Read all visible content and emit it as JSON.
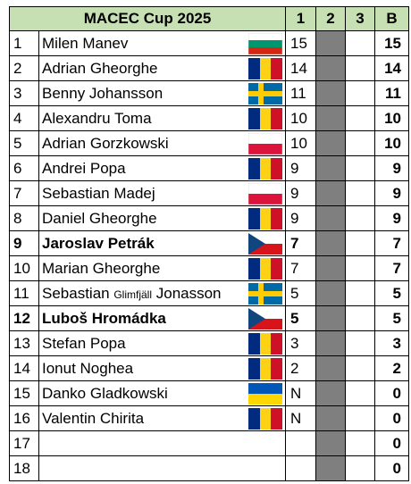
{
  "title": "MACEC Cup 2025",
  "headers": {
    "round1": "1",
    "round2": "2",
    "round3": "3",
    "best": "B"
  },
  "colors": {
    "header_bg": "#c6e0b4",
    "round2_bg": "#7f7f7f"
  },
  "rows": [
    {
      "rank": "1",
      "name_a": "Milen Manev",
      "name_small": "",
      "name_b": "",
      "flag": "bulgaria-flag-icon",
      "r1": "15",
      "b": "15",
      "bold": false
    },
    {
      "rank": "2",
      "name_a": "Adrian Gheorghe",
      "name_small": "",
      "name_b": "",
      "flag": "romania-flag-icon",
      "r1": "14",
      "b": "14",
      "bold": false
    },
    {
      "rank": "3",
      "name_a": "Benny Johansson",
      "name_small": "",
      "name_b": "",
      "flag": "sweden-flag-icon",
      "r1": "11",
      "b": "11",
      "bold": false
    },
    {
      "rank": "4",
      "name_a": "Alexandru Toma",
      "name_small": "",
      "name_b": "",
      "flag": "romania-flag-icon",
      "r1": "10",
      "b": "10",
      "bold": false
    },
    {
      "rank": "5",
      "name_a": "Adrian Gorzkowski",
      "name_small": "",
      "name_b": "",
      "flag": "poland-flag-icon",
      "r1": "10",
      "b": "10",
      "bold": false
    },
    {
      "rank": "6",
      "name_a": "Andrei Popa",
      "name_small": "",
      "name_b": "",
      "flag": "romania-flag-icon",
      "r1": "9",
      "b": "9",
      "bold": false
    },
    {
      "rank": "7",
      "name_a": "Sebastian Madej",
      "name_small": "",
      "name_b": "",
      "flag": "poland-flag-icon",
      "r1": "9",
      "b": "9",
      "bold": false
    },
    {
      "rank": "8",
      "name_a": "Daniel Gheorghe",
      "name_small": "",
      "name_b": "",
      "flag": "romania-flag-icon",
      "r1": "9",
      "b": "9",
      "bold": false
    },
    {
      "rank": "9",
      "name_a": "Jaroslav Petrák",
      "name_small": "",
      "name_b": "",
      "flag": "czechia-flag-icon",
      "r1": "7",
      "b": "7",
      "bold": true
    },
    {
      "rank": "10",
      "name_a": "Marian Gheorghe",
      "name_small": "",
      "name_b": "",
      "flag": "romania-flag-icon",
      "r1": "7",
      "b": "7",
      "bold": false
    },
    {
      "rank": "11",
      "name_a": "Sebastian ",
      "name_small": "Glimfjäll",
      "name_b": " Jonasson",
      "flag": "sweden-flag-icon",
      "r1": "5",
      "b": "5",
      "bold": false
    },
    {
      "rank": "12",
      "name_a": "Luboš Hromádka",
      "name_small": "",
      "name_b": "",
      "flag": "czechia-flag-icon",
      "r1": "5",
      "b": "5",
      "bold": true
    },
    {
      "rank": "13",
      "name_a": "Stefan Popa",
      "name_small": "",
      "name_b": "",
      "flag": "romania-flag-icon",
      "r1": "3",
      "b": "3",
      "bold": false
    },
    {
      "rank": "14",
      "name_a": "Ionut Noghea",
      "name_small": "",
      "name_b": "",
      "flag": "romania-flag-icon",
      "r1": "2",
      "b": "2",
      "bold": false
    },
    {
      "rank": "15",
      "name_a": "Danko Gladkowski",
      "name_small": "",
      "name_b": "",
      "flag": "ukraine-flag-icon",
      "r1": "N",
      "b": "0",
      "bold": false
    },
    {
      "rank": "16",
      "name_a": "Valentin Chirita",
      "name_small": "",
      "name_b": "",
      "flag": "romania-flag-icon",
      "r1": "N",
      "b": "0",
      "bold": false
    },
    {
      "rank": "17",
      "name_a": "",
      "name_small": "",
      "name_b": "",
      "flag": "",
      "r1": "",
      "b": "0",
      "bold": false
    },
    {
      "rank": "18",
      "name_a": "",
      "name_small": "",
      "name_b": "",
      "flag": "",
      "r1": "",
      "b": "0",
      "bold": false
    }
  ]
}
